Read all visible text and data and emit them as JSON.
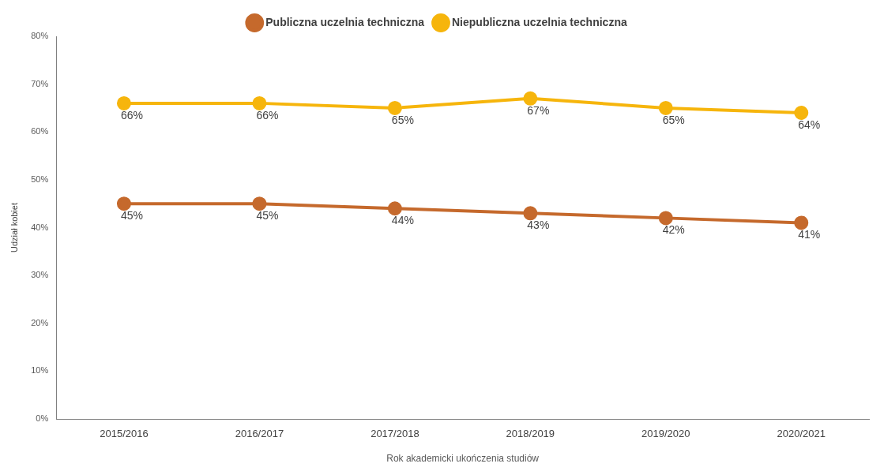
{
  "chart_data": {
    "type": "line",
    "xlabel": "Rok akademicki ukończenia studiów",
    "ylabel": "Udział kobiet",
    "categories": [
      "2015/2016",
      "2016/2017",
      "2017/2018",
      "2018/2019",
      "2019/2020",
      "2020/2021"
    ],
    "series": [
      {
        "name": "Publiczna uczelnia techniczna",
        "color": "#c5692c",
        "values": [
          45,
          45,
          44,
          43,
          42,
          41
        ],
        "value_labels": [
          "45%",
          "45%",
          "44%",
          "43%",
          "42%",
          "41%"
        ]
      },
      {
        "name": "Niepubliczna uczelnia techniczna",
        "color": "#f6b50c",
        "values": [
          66,
          66,
          65,
          67,
          65,
          64
        ],
        "value_labels": [
          "66%",
          "66%",
          "65%",
          "67%",
          "65%",
          "64%"
        ]
      }
    ],
    "ylim": [
      0,
      80
    ],
    "yticks": [
      {
        "value": 0,
        "label": "0%"
      },
      {
        "value": 10,
        "label": "10%"
      },
      {
        "value": 20,
        "label": "20%"
      },
      {
        "value": 30,
        "label": "30%"
      },
      {
        "value": 40,
        "label": "40%"
      },
      {
        "value": 50,
        "label": "50%"
      },
      {
        "value": 60,
        "label": "60%"
      },
      {
        "value": 70,
        "label": "70%"
      },
      {
        "value": 80,
        "label": "80%"
      }
    ],
    "grid": false,
    "legend": "top",
    "marker": "circle",
    "line_style": "solid"
  }
}
